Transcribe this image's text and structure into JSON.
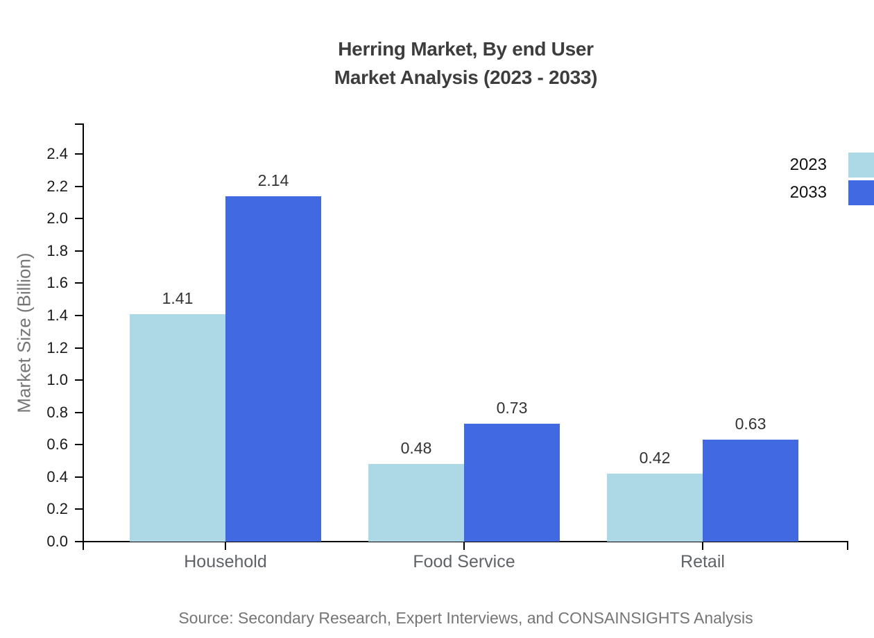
{
  "title": {
    "line1": "Herring Market, By end User",
    "line2": "Market Analysis (2023 - 2033)"
  },
  "source": "Source: Secondary Research, Expert Interviews, and CONSAINSIGHTS Analysis",
  "chart_data": {
    "type": "bar",
    "title": "Herring Market, By end User — Market Analysis (2023 - 2033)",
    "categories": [
      "Household",
      "Food Service",
      "Retail"
    ],
    "series": [
      {
        "name": "2023",
        "color": "#ADD8E6",
        "values": [
          1.41,
          0.48,
          0.42
        ]
      },
      {
        "name": "2033",
        "color": "#4169E1",
        "values": [
          2.14,
          0.73,
          0.63
        ]
      }
    ],
    "xlabel": "",
    "ylabel": "Market Size (Billion)",
    "ylim": [
      0,
      2.4
    ],
    "ytick_step": 0.2,
    "ytick_decimals": 1,
    "value_label_decimals": 2,
    "grid": false,
    "legend_position": "top-right",
    "colors": {
      "axis": "#000000",
      "tick_label": "#1a1a1a",
      "category_label": "#5f6368",
      "value_label": "#333333",
      "title": "#3d3d3d",
      "muted_text": "#757575"
    }
  }
}
